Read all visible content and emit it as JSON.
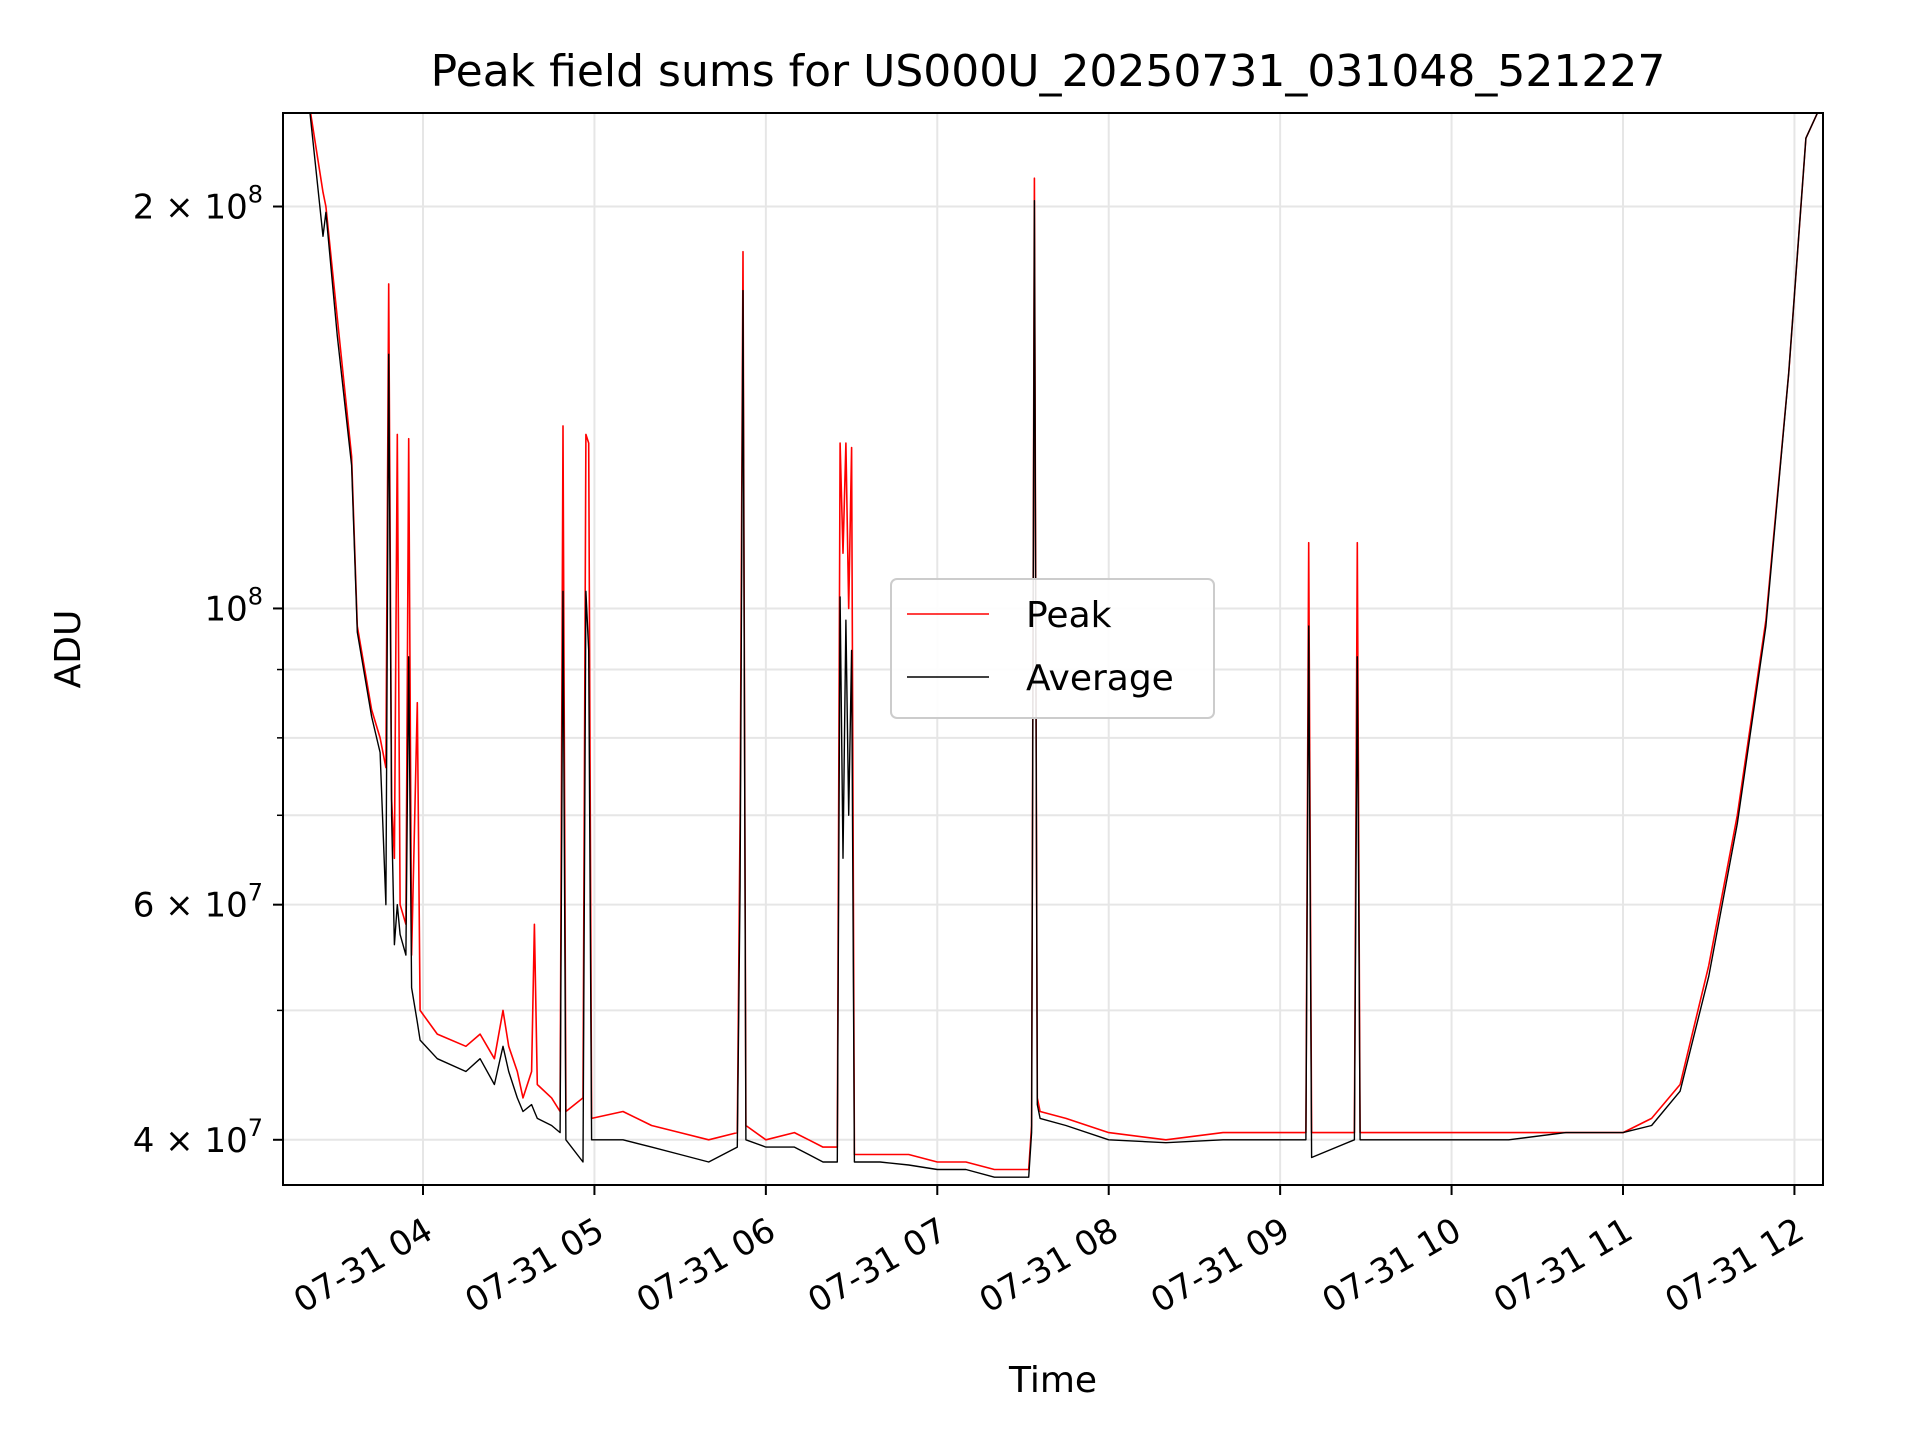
{
  "chart_data": {
    "type": "line",
    "title": "Peak field sums for US000U_20250731_031048_521227",
    "xlabel": "Time",
    "ylabel": "ADU",
    "yscale": "log",
    "ylim": [
      37000000,
      235000000
    ],
    "xlim": [
      "2025-07-31 03:11",
      "2025-07-31 12:10"
    ],
    "grid": true,
    "legend_position": "center",
    "x_tick_labels": [
      "07-31 04",
      "07-31 05",
      "07-31 06",
      "07-31 07",
      "07-31 08",
      "07-31 09",
      "07-31 10",
      "07-31 11",
      "07-31 12"
    ],
    "y_tick_labels": [
      {
        "mantissa": "4",
        "exp": "7",
        "value": 40000000
      },
      {
        "mantissa": "6",
        "exp": "7",
        "value": 60000000
      },
      {
        "mantissa": "",
        "exp": "8",
        "value": 100000000
      },
      {
        "mantissa": "2",
        "exp": "8",
        "value": 200000000
      }
    ],
    "series": [
      {
        "name": "Peak",
        "color": "#ff0000",
        "points": [
          [
            "2025-07-31 03:11",
            240000000
          ],
          [
            "2025-07-31 03:20",
            240000000
          ],
          [
            "2025-07-31 03:25",
            205000000
          ],
          [
            "2025-07-31 03:26",
            200000000
          ],
          [
            "2025-07-31 03:30",
            165000000
          ],
          [
            "2025-07-31 03:35",
            130000000
          ],
          [
            "2025-07-31 03:37",
            97000000
          ],
          [
            "2025-07-31 03:42",
            84000000
          ],
          [
            "2025-07-31 03:45",
            80000000
          ],
          [
            "2025-07-31 03:47",
            76000000
          ],
          [
            "2025-07-31 03:48",
            175000000
          ],
          [
            "2025-07-31 03:49",
            72000000
          ],
          [
            "2025-07-31 03:50",
            65000000
          ],
          [
            "2025-07-31 03:51",
            135000000
          ],
          [
            "2025-07-31 03:52",
            60000000
          ],
          [
            "2025-07-31 03:54",
            58000000
          ],
          [
            "2025-07-31 03:55",
            134000000
          ],
          [
            "2025-07-31 03:56",
            55000000
          ],
          [
            "2025-07-31 03:58",
            85000000
          ],
          [
            "2025-07-31 03:59",
            50000000
          ],
          [
            "2025-07-31 04:05",
            48000000
          ],
          [
            "2025-07-31 04:15",
            47000000
          ],
          [
            "2025-07-31 04:20",
            48000000
          ],
          [
            "2025-07-31 04:25",
            46000000
          ],
          [
            "2025-07-31 04:28",
            50000000
          ],
          [
            "2025-07-31 04:30",
            47000000
          ],
          [
            "2025-07-31 04:33",
            45000000
          ],
          [
            "2025-07-31 04:35",
            43000000
          ],
          [
            "2025-07-31 04:38",
            45000000
          ],
          [
            "2025-07-31 04:39",
            58000000
          ],
          [
            "2025-07-31 04:40",
            44000000
          ],
          [
            "2025-07-31 04:45",
            43000000
          ],
          [
            "2025-07-31 04:48",
            42000000
          ],
          [
            "2025-07-31 04:49",
            137000000
          ],
          [
            "2025-07-31 04:50",
            42000000
          ],
          [
            "2025-07-31 04:56",
            43000000
          ],
          [
            "2025-07-31 04:57",
            135000000
          ],
          [
            "2025-07-31 04:58",
            133000000
          ],
          [
            "2025-07-31 04:59",
            41500000
          ],
          [
            "2025-07-31 05:10",
            42000000
          ],
          [
            "2025-07-31 05:20",
            41000000
          ],
          [
            "2025-07-31 05:30",
            40500000
          ],
          [
            "2025-07-31 05:40",
            40000000
          ],
          [
            "2025-07-31 05:50",
            40500000
          ],
          [
            "2025-07-31 05:51",
            70000000
          ],
          [
            "2025-07-31 05:52",
            185000000
          ],
          [
            "2025-07-31 05:53",
            41000000
          ],
          [
            "2025-07-31 06:00",
            40000000
          ],
          [
            "2025-07-31 06:10",
            40500000
          ],
          [
            "2025-07-31 06:15",
            40000000
          ],
          [
            "2025-07-31 06:20",
            39500000
          ],
          [
            "2025-07-31 06:25",
            39500000
          ],
          [
            "2025-07-31 06:26",
            133000000
          ],
          [
            "2025-07-31 06:27",
            110000000
          ],
          [
            "2025-07-31 06:28",
            133000000
          ],
          [
            "2025-07-31 06:29",
            100000000
          ],
          [
            "2025-07-31 06:30",
            132000000
          ],
          [
            "2025-07-31 06:31",
            39000000
          ],
          [
            "2025-07-31 06:40",
            39000000
          ],
          [
            "2025-07-31 06:50",
            39000000
          ],
          [
            "2025-07-31 07:00",
            38500000
          ],
          [
            "2025-07-31 07:10",
            38500000
          ],
          [
            "2025-07-31 07:20",
            38000000
          ],
          [
            "2025-07-31 07:32",
            38000000
          ],
          [
            "2025-07-31 07:33",
            41000000
          ],
          [
            "2025-07-31 07:34",
            210000000
          ],
          [
            "2025-07-31 07:35",
            43000000
          ],
          [
            "2025-07-31 07:36",
            42000000
          ],
          [
            "2025-07-31 07:45",
            41500000
          ],
          [
            "2025-07-31 08:00",
            40500000
          ],
          [
            "2025-07-31 08:20",
            40000000
          ],
          [
            "2025-07-31 08:40",
            40500000
          ],
          [
            "2025-07-31 09:00",
            40500000
          ],
          [
            "2025-07-31 09:09",
            40500000
          ],
          [
            "2025-07-31 09:10",
            112000000
          ],
          [
            "2025-07-31 09:11",
            40500000
          ],
          [
            "2025-07-31 09:26",
            40500000
          ],
          [
            "2025-07-31 09:27",
            112000000
          ],
          [
            "2025-07-31 09:28",
            40500000
          ],
          [
            "2025-07-31 09:45",
            40500000
          ],
          [
            "2025-07-31 10:00",
            40500000
          ],
          [
            "2025-07-31 10:20",
            40500000
          ],
          [
            "2025-07-31 10:40",
            40500000
          ],
          [
            "2025-07-31 11:00",
            40500000
          ],
          [
            "2025-07-31 11:10",
            41500000
          ],
          [
            "2025-07-31 11:20",
            44000000
          ],
          [
            "2025-07-31 11:30",
            54000000
          ],
          [
            "2025-07-31 11:40",
            70000000
          ],
          [
            "2025-07-31 11:50",
            98000000
          ],
          [
            "2025-07-31 11:58",
            150000000
          ],
          [
            "2025-07-31 12:04",
            225000000
          ],
          [
            "2025-07-31 12:10",
            240000000
          ]
        ]
      },
      {
        "name": "Average",
        "color": "#000000",
        "points": [
          [
            "2025-07-31 03:11",
            240000000
          ],
          [
            "2025-07-31 03:20",
            240000000
          ],
          [
            "2025-07-31 03:25",
            190000000
          ],
          [
            "2025-07-31 03:26",
            198000000
          ],
          [
            "2025-07-31 03:30",
            160000000
          ],
          [
            "2025-07-31 03:35",
            128000000
          ],
          [
            "2025-07-31 03:37",
            96000000
          ],
          [
            "2025-07-31 03:42",
            83000000
          ],
          [
            "2025-07-31 03:45",
            78000000
          ],
          [
            "2025-07-31 03:47",
            60000000
          ],
          [
            "2025-07-31 03:48",
            155000000
          ],
          [
            "2025-07-31 03:49",
            70000000
          ],
          [
            "2025-07-31 03:50",
            56000000
          ],
          [
            "2025-07-31 03:51",
            60000000
          ],
          [
            "2025-07-31 03:52",
            57000000
          ],
          [
            "2025-07-31 03:54",
            55000000
          ],
          [
            "2025-07-31 03:55",
            92000000
          ],
          [
            "2025-07-31 03:56",
            52000000
          ],
          [
            "2025-07-31 03:58",
            49000000
          ],
          [
            "2025-07-31 03:59",
            47500000
          ],
          [
            "2025-07-31 04:05",
            46000000
          ],
          [
            "2025-07-31 04:15",
            45000000
          ],
          [
            "2025-07-31 04:20",
            46000000
          ],
          [
            "2025-07-31 04:25",
            44000000
          ],
          [
            "2025-07-31 04:28",
            47000000
          ],
          [
            "2025-07-31 04:30",
            45000000
          ],
          [
            "2025-07-31 04:33",
            43000000
          ],
          [
            "2025-07-31 04:35",
            42000000
          ],
          [
            "2025-07-31 04:38",
            42500000
          ],
          [
            "2025-07-31 04:39",
            42000000
          ],
          [
            "2025-07-31 04:40",
            41500000
          ],
          [
            "2025-07-31 04:45",
            41000000
          ],
          [
            "2025-07-31 04:48",
            40500000
          ],
          [
            "2025-07-31 04:49",
            103000000
          ],
          [
            "2025-07-31 04:50",
            40000000
          ],
          [
            "2025-07-31 04:56",
            38500000
          ],
          [
            "2025-07-31 04:57",
            103000000
          ],
          [
            "2025-07-31 04:58",
            93000000
          ],
          [
            "2025-07-31 04:59",
            40000000
          ],
          [
            "2025-07-31 05:10",
            40000000
          ],
          [
            "2025-07-31 05:20",
            39500000
          ],
          [
            "2025-07-31 05:30",
            39000000
          ],
          [
            "2025-07-31 05:40",
            38500000
          ],
          [
            "2025-07-31 05:50",
            39500000
          ],
          [
            "2025-07-31 05:51",
            62000000
          ],
          [
            "2025-07-31 05:52",
            173000000
          ],
          [
            "2025-07-31 05:53",
            40000000
          ],
          [
            "2025-07-31 06:00",
            39500000
          ],
          [
            "2025-07-31 06:10",
            39500000
          ],
          [
            "2025-07-31 06:15",
            39000000
          ],
          [
            "2025-07-31 06:20",
            38500000
          ],
          [
            "2025-07-31 06:25",
            38500000
          ],
          [
            "2025-07-31 06:26",
            102000000
          ],
          [
            "2025-07-31 06:27",
            65000000
          ],
          [
            "2025-07-31 06:28",
            98000000
          ],
          [
            "2025-07-31 06:29",
            70000000
          ],
          [
            "2025-07-31 06:30",
            93000000
          ],
          [
            "2025-07-31 06:31",
            38500000
          ],
          [
            "2025-07-31 06:40",
            38500000
          ],
          [
            "2025-07-31 06:50",
            38300000
          ],
          [
            "2025-07-31 07:00",
            38000000
          ],
          [
            "2025-07-31 07:10",
            38000000
          ],
          [
            "2025-07-31 07:20",
            37500000
          ],
          [
            "2025-07-31 07:32",
            37500000
          ],
          [
            "2025-07-31 07:33",
            40500000
          ],
          [
            "2025-07-31 07:34",
            202000000
          ],
          [
            "2025-07-31 07:35",
            42500000
          ],
          [
            "2025-07-31 07:36",
            41500000
          ],
          [
            "2025-07-31 07:45",
            41000000
          ],
          [
            "2025-07-31 08:00",
            40000000
          ],
          [
            "2025-07-31 08:20",
            39800000
          ],
          [
            "2025-07-31 08:40",
            40000000
          ],
          [
            "2025-07-31 09:00",
            40000000
          ],
          [
            "2025-07-31 09:09",
            40000000
          ],
          [
            "2025-07-31 09:10",
            97000000
          ],
          [
            "2025-07-31 09:11",
            38800000
          ],
          [
            "2025-07-31 09:26",
            40000000
          ],
          [
            "2025-07-31 09:27",
            92000000
          ],
          [
            "2025-07-31 09:28",
            40000000
          ],
          [
            "2025-07-31 09:45",
            40000000
          ],
          [
            "2025-07-31 10:00",
            40000000
          ],
          [
            "2025-07-31 10:20",
            40000000
          ],
          [
            "2025-07-31 10:40",
            40500000
          ],
          [
            "2025-07-31 11:00",
            40500000
          ],
          [
            "2025-07-31 11:10",
            41000000
          ],
          [
            "2025-07-31 11:20",
            43500000
          ],
          [
            "2025-07-31 11:30",
            53000000
          ],
          [
            "2025-07-31 11:40",
            69000000
          ],
          [
            "2025-07-31 11:50",
            97000000
          ],
          [
            "2025-07-31 11:58",
            150000000
          ],
          [
            "2025-07-31 12:04",
            225000000
          ],
          [
            "2025-07-31 12:10",
            240000000
          ]
        ]
      }
    ]
  }
}
